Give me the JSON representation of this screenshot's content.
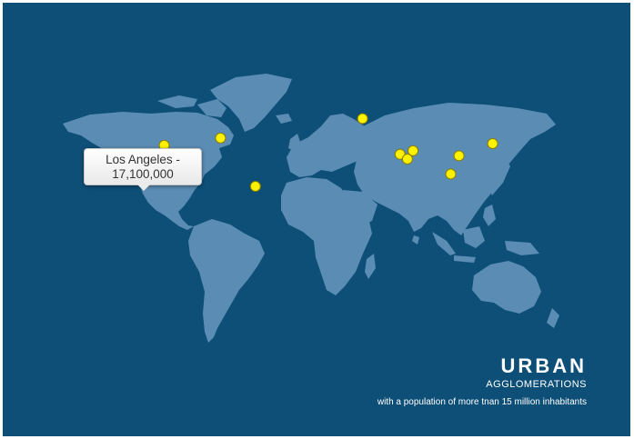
{
  "map": {
    "background_color": "#0e4f78",
    "land_color": "#5b8db4",
    "marker_color": "#fff200"
  },
  "tooltip": {
    "city": "Los Angeles -",
    "population": "17,100,000"
  },
  "legend": {
    "title": "URBAN",
    "subtitle": "AGGLOMERATIONS",
    "note": "with a population of more tnan 15 million inhabitants"
  },
  "cities": [
    {
      "id": "los-angeles",
      "lon": -118.2,
      "lat": 34.1
    },
    {
      "id": "new-york",
      "lon": -74.0,
      "lat": 40.7
    },
    {
      "id": "mexico-city",
      "lon": -99.1,
      "lat": 19.4
    },
    {
      "id": "sao-paulo",
      "lon": -46.6,
      "lat": -23.5
    },
    {
      "id": "moscow",
      "lon": 37.6,
      "lat": 55.8
    },
    {
      "id": "karachi",
      "lon": 67.0,
      "lat": 24.9
    },
    {
      "id": "delhi",
      "lon": 77.2,
      "lat": 28.6
    },
    {
      "id": "mumbai",
      "lon": 72.8,
      "lat": 19.1
    },
    {
      "id": "guangzhou",
      "lon": 113.3,
      "lat": 23.1
    },
    {
      "id": "tokyo",
      "lon": 139.7,
      "lat": 35.7
    },
    {
      "id": "jakarta",
      "lon": 106.8,
      "lat": -6.2
    }
  ]
}
